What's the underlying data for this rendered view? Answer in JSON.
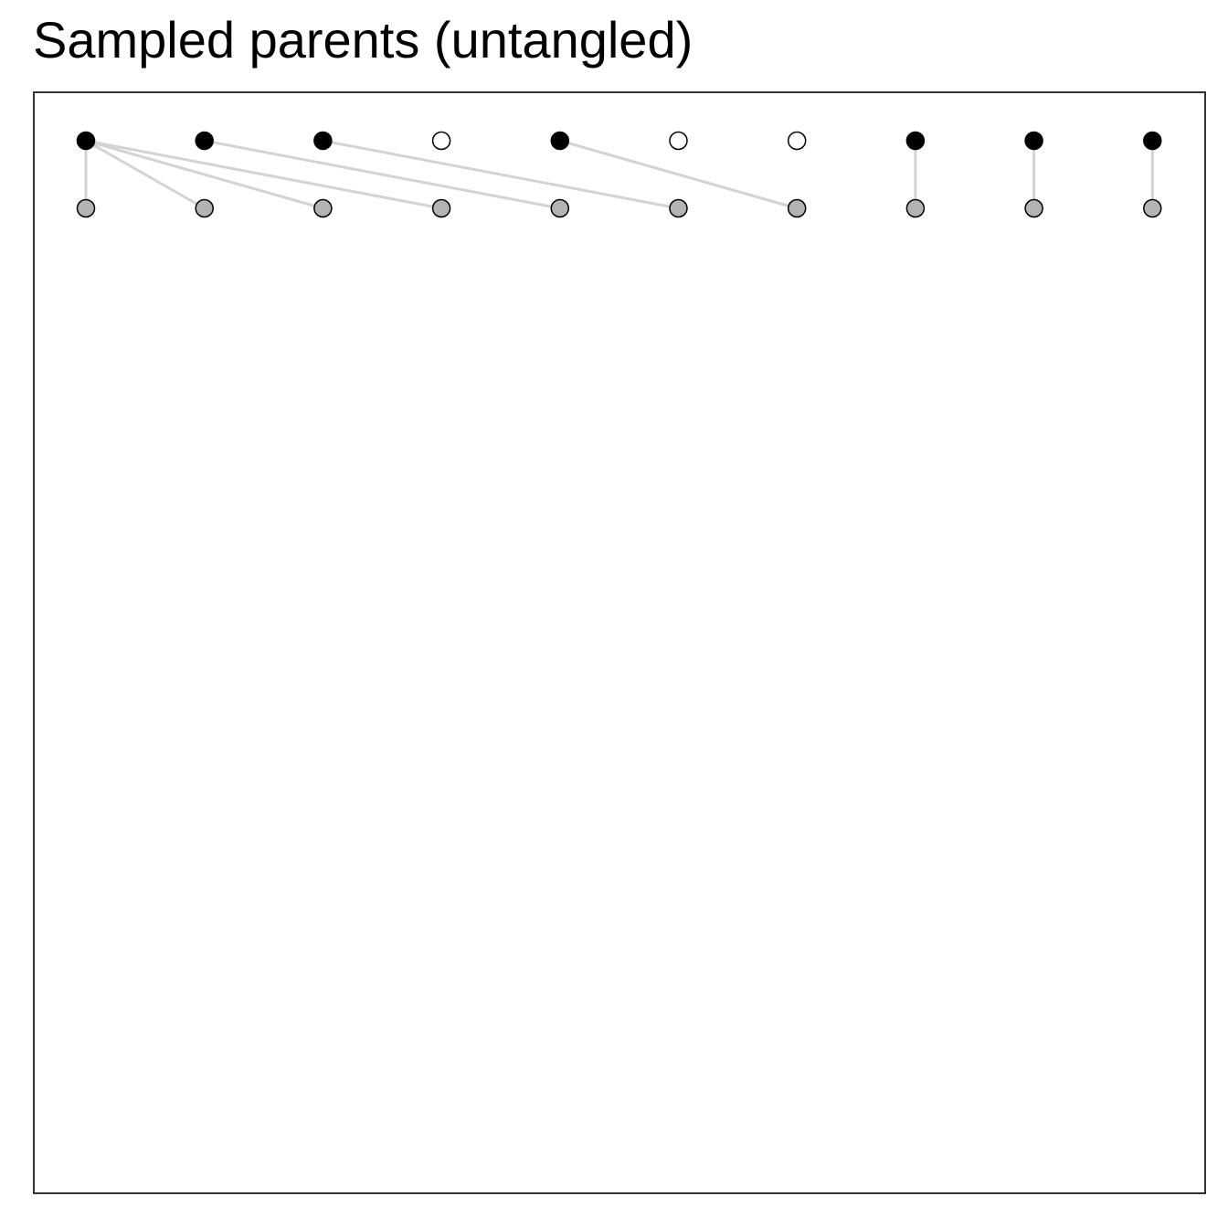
{
  "title": "Sampled parents (untangled)",
  "colors": {
    "border": "#333333",
    "edge": "#d3d3d3",
    "parent_selected_fill": "#000000",
    "parent_unselected_fill": "#ffffff",
    "child_fill": "#b3b3b3",
    "node_stroke": "#000000"
  },
  "graph": {
    "parents": [
      {
        "index": 0,
        "sampled": true
      },
      {
        "index": 1,
        "sampled": true
      },
      {
        "index": 2,
        "sampled": true
      },
      {
        "index": 3,
        "sampled": false
      },
      {
        "index": 4,
        "sampled": true
      },
      {
        "index": 5,
        "sampled": false
      },
      {
        "index": 6,
        "sampled": false
      },
      {
        "index": 7,
        "sampled": true
      },
      {
        "index": 8,
        "sampled": true
      },
      {
        "index": 9,
        "sampled": true
      }
    ],
    "children": [
      {
        "index": 0,
        "parent": 0
      },
      {
        "index": 1,
        "parent": 0
      },
      {
        "index": 2,
        "parent": 0
      },
      {
        "index": 3,
        "parent": 0
      },
      {
        "index": 4,
        "parent": 1
      },
      {
        "index": 5,
        "parent": 2
      },
      {
        "index": 6,
        "parent": 4
      },
      {
        "index": 7,
        "parent": 7
      },
      {
        "index": 8,
        "parent": 8
      },
      {
        "index": 9,
        "parent": 9
      }
    ]
  }
}
